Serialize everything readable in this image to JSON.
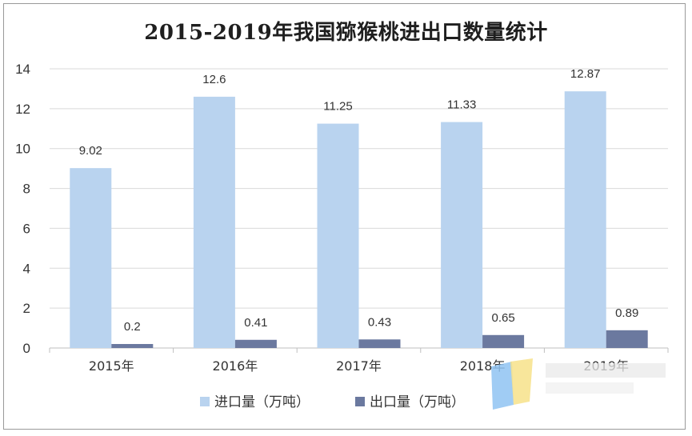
{
  "chart_data": {
    "type": "bar",
    "title": "2015-2019年我国猕猴桃进出口数量统计",
    "categories": [
      "2015年",
      "2016年",
      "2017年",
      "2018年",
      "2019年"
    ],
    "series": [
      {
        "name": "进口量（万吨）",
        "values": [
          9.02,
          12.6,
          11.25,
          11.33,
          12.87
        ],
        "color": "#b9d3ef"
      },
      {
        "name": "出口量（万吨）",
        "values": [
          0.2,
          0.41,
          0.43,
          0.65,
          0.89
        ],
        "color": "#6b799f"
      }
    ],
    "ylim": [
      0,
      14
    ],
    "yticks": [
      0,
      2,
      4,
      6,
      8,
      10,
      12,
      14
    ],
    "grid": true,
    "legend": "bottom",
    "gridline_color": "#d9d9d9"
  }
}
